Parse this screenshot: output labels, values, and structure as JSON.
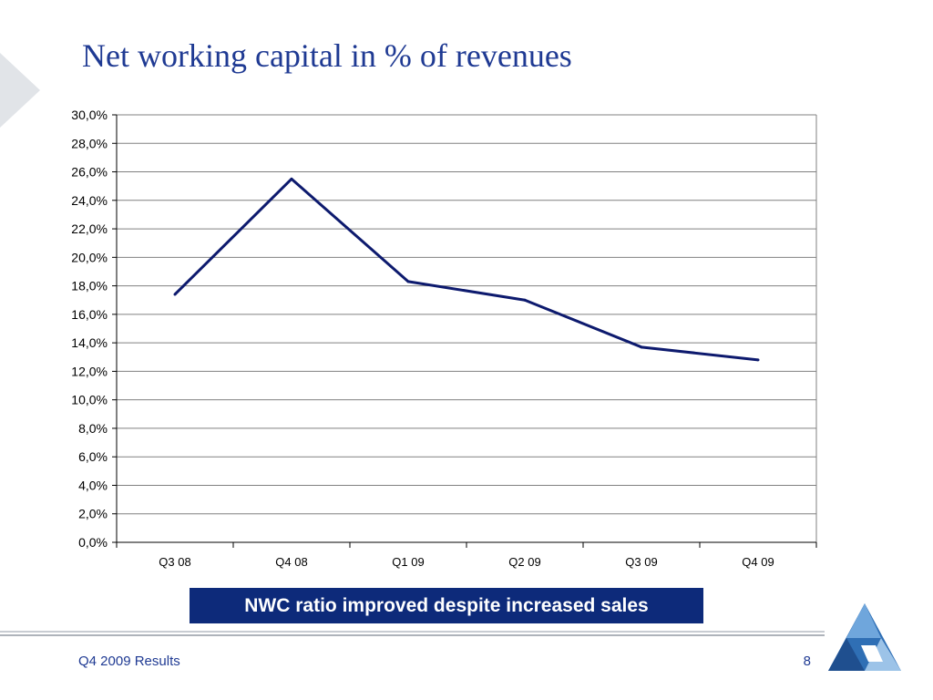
{
  "slide": {
    "title": "Net working capital in % of revenues",
    "callout": "NWC ratio improved despite increased sales",
    "footer": "Q4 2009 Results",
    "page_number": "8"
  },
  "colors": {
    "title": "#1f3a93",
    "line": "#0d1a6e",
    "callout_bg": "#0d2a7a",
    "gridline": "#808080",
    "chevron": "#e1e4e8"
  },
  "icons": {
    "chevron": "chevron-right-icon",
    "logo": "company-logo-icon"
  },
  "chart_data": {
    "type": "line",
    "categories": [
      "Q3 08",
      "Q4 08",
      "Q1 09",
      "Q2 09",
      "Q3 09",
      "Q4 09"
    ],
    "series": [
      {
        "values": [
          17.4,
          25.5,
          18.3,
          17.0,
          13.7,
          12.8
        ]
      }
    ],
    "ylim": [
      0,
      30
    ],
    "ytick_step": 2,
    "ytick_labels": [
      "0,0%",
      "2,0%",
      "4,0%",
      "6,0%",
      "8,0%",
      "10,0%",
      "12,0%",
      "14,0%",
      "16,0%",
      "18,0%",
      "20,0%",
      "22,0%",
      "24,0%",
      "26,0%",
      "28,0%",
      "30,0%"
    ],
    "title": "",
    "xlabel": "",
    "ylabel": "",
    "grid": true,
    "legend": false
  }
}
